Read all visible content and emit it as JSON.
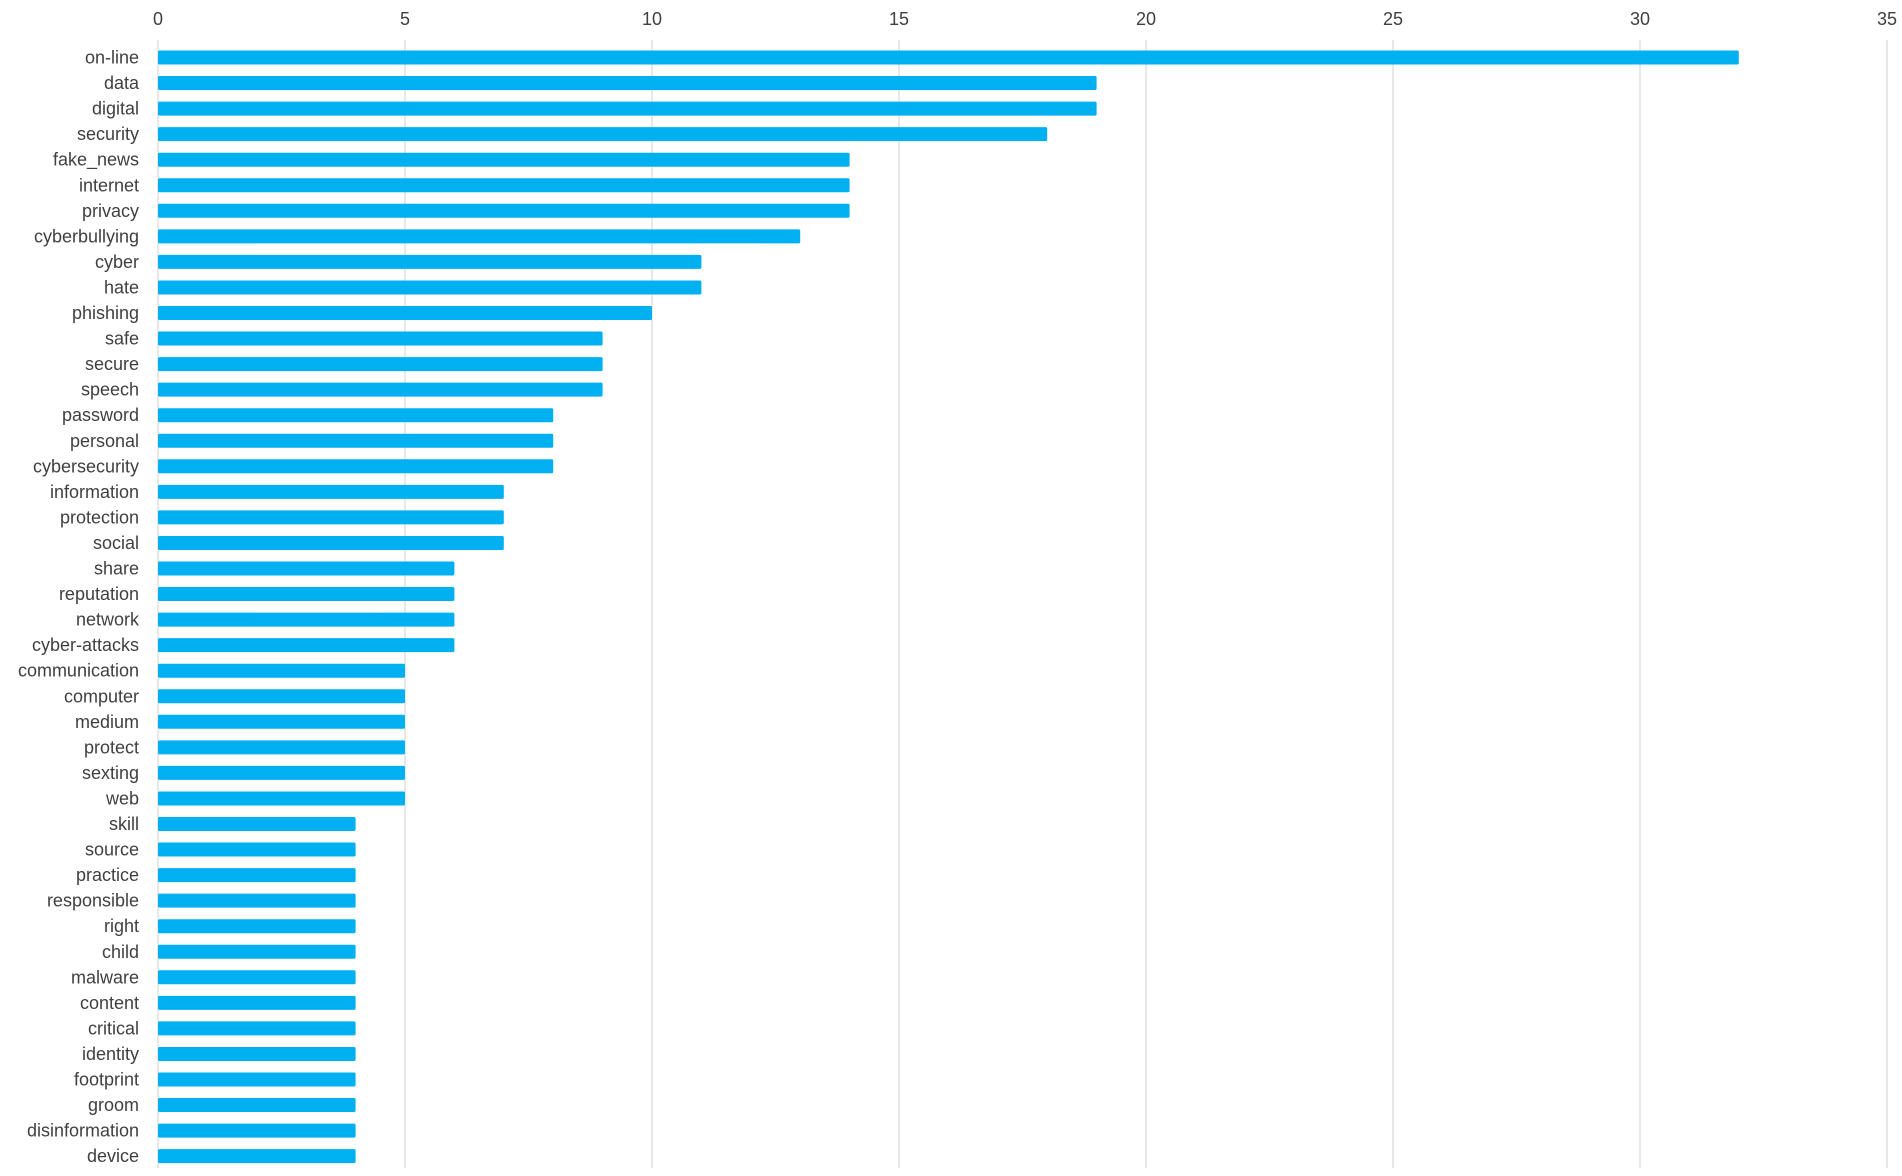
{
  "chart_data": {
    "type": "bar",
    "orientation": "horizontal",
    "title": "",
    "xlabel": "",
    "ylabel": "",
    "xlim": [
      0,
      35
    ],
    "x_ticks": [
      0,
      5,
      10,
      15,
      20,
      25,
      30,
      35
    ],
    "x_axis_position": "top",
    "grid": true,
    "legend": "none",
    "bar_color": "#00b0f0",
    "grid_color": "#d9d9d9",
    "label_color": "#404040",
    "categories": [
      "on-line",
      "data",
      "digital",
      "security",
      "fake_news",
      "internet",
      "privacy",
      "cyberbullying",
      "cyber",
      "hate",
      "phishing",
      "safe",
      "secure",
      "speech",
      "password",
      "personal",
      "cybersecurity",
      "information",
      "protection",
      "social",
      "share",
      "reputation",
      "network",
      "cyber-attacks",
      "communication",
      "computer",
      "medium",
      "protect",
      "sexting",
      "web",
      "skill",
      "source",
      "practice",
      "responsible",
      "right",
      "child",
      "malware",
      "content",
      "critical",
      "identity",
      "footprint",
      "groom",
      "disinformation",
      "device"
    ],
    "values": [
      32,
      19,
      19,
      18,
      14,
      14,
      14,
      13,
      11,
      11,
      10,
      9,
      9,
      9,
      8,
      8,
      8,
      7,
      7,
      7,
      6,
      6,
      6,
      6,
      5,
      5,
      5,
      5,
      5,
      5,
      4,
      4,
      4,
      4,
      4,
      4,
      4,
      4,
      4,
      4,
      4,
      4,
      4,
      4
    ]
  }
}
